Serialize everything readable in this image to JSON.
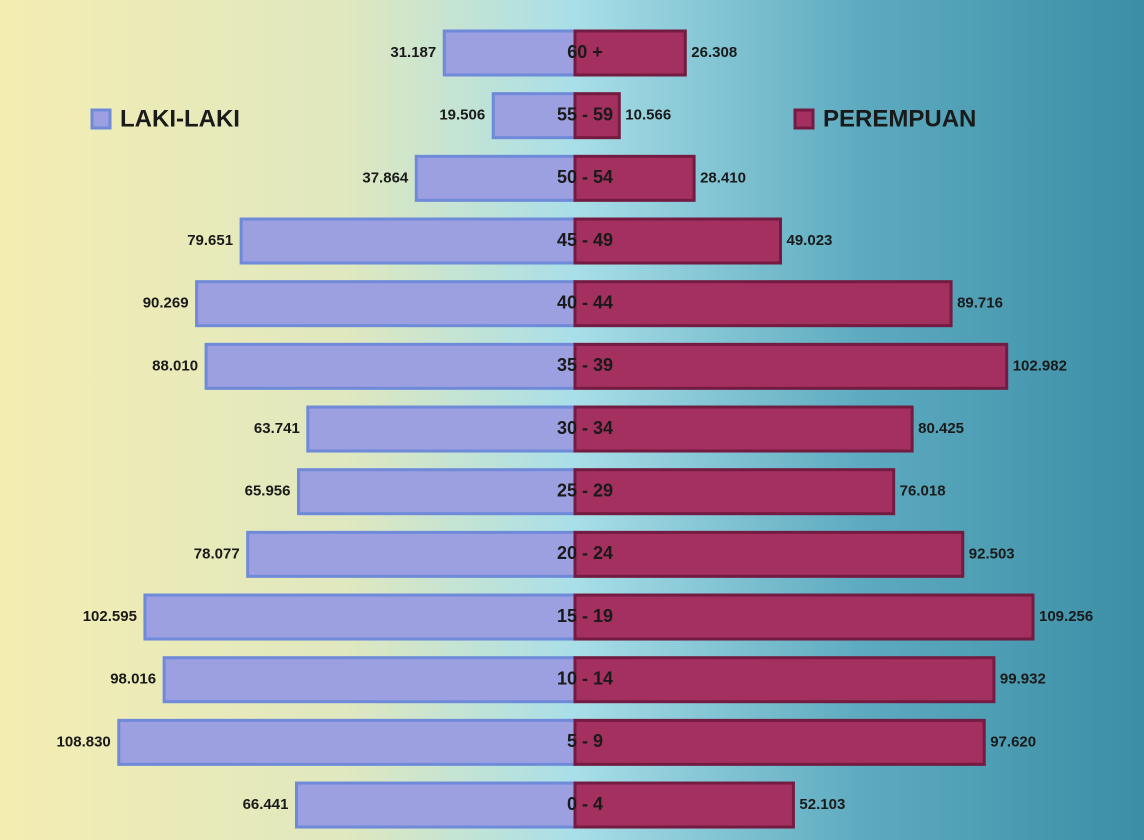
{
  "chart_data": {
    "type": "pyramid",
    "categories": [
      "60 +",
      "55 - 59",
      "50 - 54",
      "45 - 49",
      "40 - 44",
      "35 - 39",
      "30 - 34",
      "25 - 29",
      "20 - 24",
      "15 - 19",
      "10 - 14",
      "5 - 9",
      "0 - 4"
    ],
    "series": [
      {
        "name": "LAKI-LAKI",
        "color": "#9c9fe0",
        "values": [
          31187,
          19506,
          37864,
          79651,
          90269,
          88010,
          63741,
          65956,
          78077,
          102595,
          98016,
          108830,
          66441
        ],
        "value_labels": [
          "31.187",
          "19.506",
          "37.864",
          "79.651",
          "90.269",
          "88.010",
          "63.741",
          "65.956",
          "78.077",
          "102.595",
          "98.016",
          "108.830",
          "66.441"
        ]
      },
      {
        "name": "PEREMPUAN",
        "color": "#a3305f",
        "values": [
          26308,
          10566,
          28410,
          49023,
          89716,
          102982,
          80425,
          76018,
          92503,
          109256,
          99932,
          97620,
          52103
        ],
        "value_labels": [
          "26.308",
          "10.566",
          "28.410",
          "49.023",
          "89.716",
          "102.982",
          "80.425",
          "76.018",
          "92.503",
          "109.256",
          "99.932",
          "97.620",
          "52.103"
        ]
      }
    ]
  }
}
